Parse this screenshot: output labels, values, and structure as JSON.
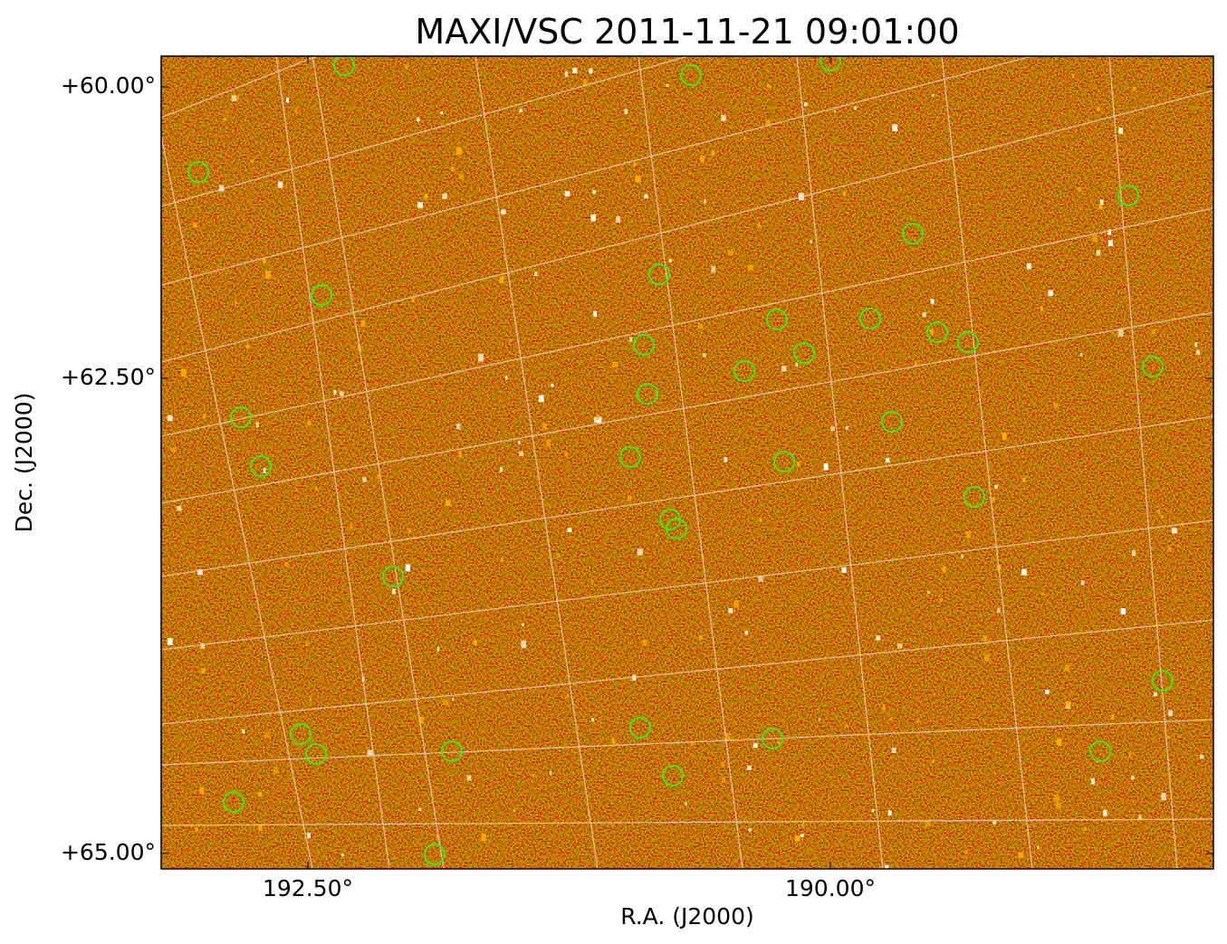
{
  "title": "MAXI/VSC 2011-11-21 09:01:00",
  "x_axis": {
    "label": "R.A. (J2000)",
    "ticks": [
      "192.50°",
      "190.00°"
    ]
  },
  "y_axis": {
    "label": "Dec. (J2000)",
    "ticks": [
      "+60.00°",
      "+62.50°",
      "+65.00°"
    ]
  }
}
